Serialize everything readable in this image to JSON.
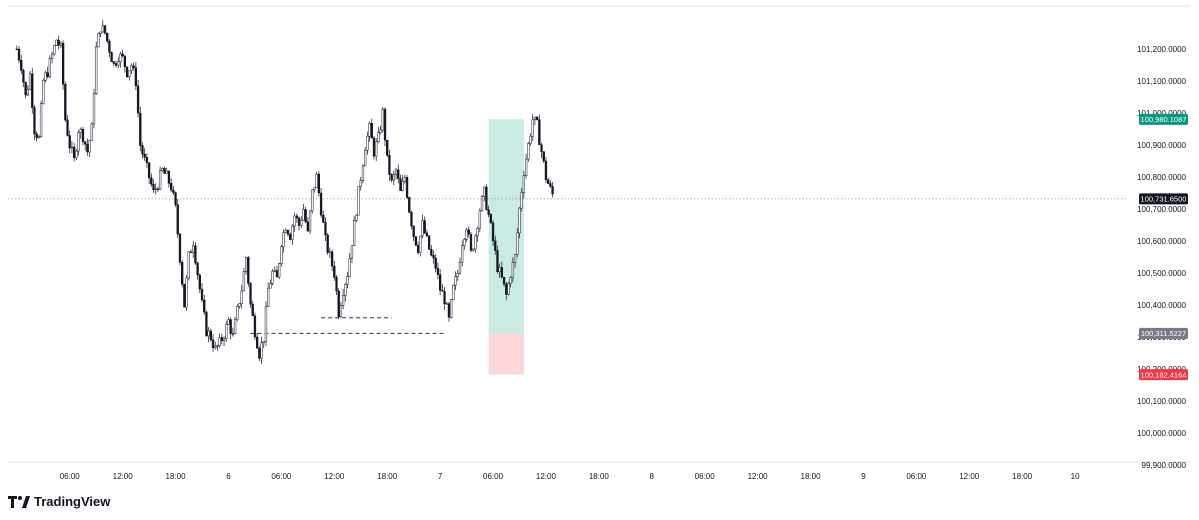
{
  "brand": {
    "name": "TradingView",
    "icon": "tradingview-logo-icon"
  },
  "colors": {
    "up": "#131722",
    "down": "#131722",
    "target_zone": "#bfe8df",
    "stop_zone": "#fbd3d6",
    "target_tag": "#089981",
    "stop_tag": "#f23645",
    "current_tag": "#131722",
    "level_tag": "#787b86"
  },
  "chart_data": {
    "type": "candlestick",
    "title": "",
    "ylim": [
      99900,
      101250
    ],
    "grid": false,
    "y_ticks": [
      {
        "value": 101200,
        "label": "101,200.0000"
      },
      {
        "value": 101100,
        "label": "101,100.0000"
      },
      {
        "value": 101000,
        "label": "101,000.0000"
      },
      {
        "value": 100900,
        "label": "100,900.0000"
      },
      {
        "value": 100800,
        "label": "100,800.0000"
      },
      {
        "value": 100700,
        "label": "100,700.0000"
      },
      {
        "value": 100600,
        "label": "100,600.0000"
      },
      {
        "value": 100500,
        "label": "100,500.0000"
      },
      {
        "value": 100400,
        "label": "100,400.0000"
      },
      {
        "value": 100300,
        "label": "100,300.0000"
      },
      {
        "value": 100200,
        "label": "100,200.0000"
      },
      {
        "value": 100100,
        "label": "100,100.0000"
      },
      {
        "value": 100000,
        "label": "100,000.0000"
      },
      {
        "value": 99900,
        "label": "99,900.0000"
      }
    ],
    "x_ticks": [
      {
        "hour": 6,
        "label": "06:00"
      },
      {
        "hour": 12,
        "label": "12:00"
      },
      {
        "hour": 18,
        "label": "18:00"
      },
      {
        "hour": 24,
        "label": "6"
      },
      {
        "hour": 30,
        "label": "06:00"
      },
      {
        "hour": 36,
        "label": "12:00"
      },
      {
        "hour": 42,
        "label": "18:00"
      },
      {
        "hour": 48,
        "label": "7"
      },
      {
        "hour": 54,
        "label": "06:00"
      },
      {
        "hour": 60,
        "label": "12:00"
      },
      {
        "hour": 66,
        "label": "18:00"
      },
      {
        "hour": 72,
        "label": "8"
      },
      {
        "hour": 78,
        "label": "06:00"
      },
      {
        "hour": 84,
        "label": "12:00"
      },
      {
        "hour": 90,
        "label": "18:00"
      },
      {
        "hour": 96,
        "label": "9"
      },
      {
        "hour": 102,
        "label": "06:00"
      },
      {
        "hour": 108,
        "label": "12:00"
      },
      {
        "hour": 114,
        "label": "18:00"
      },
      {
        "hour": 120,
        "label": "10"
      }
    ],
    "price_path": [
      [
        0.0,
        101200
      ],
      [
        0.5,
        101150
      ],
      [
        1.0,
        101050
      ],
      [
        1.5,
        101120
      ],
      [
        2.0,
        100950
      ],
      [
        2.5,
        100920
      ],
      [
        3.0,
        101100
      ],
      [
        3.5,
        101130
      ],
      [
        4.0,
        101180
      ],
      [
        4.5,
        101230
      ],
      [
        5.0,
        101200
      ],
      [
        5.5,
        100980
      ],
      [
        6.0,
        100900
      ],
      [
        6.5,
        100850
      ],
      [
        7.0,
        100950
      ],
      [
        7.5,
        100930
      ],
      [
        8.0,
        100880
      ],
      [
        8.5,
        100950
      ],
      [
        9.0,
        101200
      ],
      [
        9.5,
        101270
      ],
      [
        10.0,
        101250
      ],
      [
        10.5,
        101200
      ],
      [
        11.0,
        101150
      ],
      [
        11.5,
        101180
      ],
      [
        12.0,
        101170
      ],
      [
        12.5,
        101130
      ],
      [
        13.0,
        101150
      ],
      [
        13.5,
        101100
      ],
      [
        14.0,
        100900
      ],
      [
        14.5,
        100850
      ],
      [
        15.0,
        100800
      ],
      [
        15.5,
        100750
      ],
      [
        16.0,
        100780
      ],
      [
        16.5,
        100820
      ],
      [
        17.0,
        100800
      ],
      [
        17.5,
        100770
      ],
      [
        18.0,
        100700
      ],
      [
        18.5,
        100550
      ],
      [
        19.0,
        100400
      ],
      [
        19.5,
        100550
      ],
      [
        20.0,
        100600
      ],
      [
        20.5,
        100500
      ],
      [
        21.0,
        100400
      ],
      [
        21.5,
        100320
      ],
      [
        22.0,
        100300
      ],
      [
        22.5,
        100260
      ],
      [
        23.0,
        100280
      ],
      [
        23.5,
        100310
      ],
      [
        24.0,
        100350
      ],
      [
        24.5,
        100300
      ],
      [
        25.0,
        100380
      ],
      [
        25.5,
        100450
      ],
      [
        26.0,
        100550
      ],
      [
        26.5,
        100400
      ],
      [
        27.0,
        100320
      ],
      [
        27.5,
        100250
      ],
      [
        28.0,
        100300
      ],
      [
        28.5,
        100450
      ],
      [
        29.0,
        100500
      ],
      [
        29.5,
        100480
      ],
      [
        30.0,
        100600
      ],
      [
        30.5,
        100650
      ],
      [
        31.0,
        100620
      ],
      [
        31.5,
        100680
      ],
      [
        32.0,
        100650
      ],
      [
        32.5,
        100700
      ],
      [
        33.0,
        100620
      ],
      [
        33.5,
        100750
      ],
      [
        34.0,
        100800
      ],
      [
        34.5,
        100700
      ],
      [
        35.0,
        100600
      ],
      [
        35.5,
        100550
      ],
      [
        36.0,
        100500
      ],
      [
        36.5,
        100380
      ],
      [
        37.0,
        100450
      ],
      [
        37.5,
        100500
      ],
      [
        38.0,
        100600
      ],
      [
        38.5,
        100700
      ],
      [
        39.0,
        100800
      ],
      [
        39.5,
        100900
      ],
      [
        40.0,
        100950
      ],
      [
        40.5,
        100880
      ],
      [
        41.0,
        100920
      ],
      [
        41.5,
        101000
      ],
      [
        42.0,
        100850
      ],
      [
        42.5,
        100780
      ],
      [
        43.0,
        100820
      ],
      [
        43.5,
        100750
      ],
      [
        44.0,
        100800
      ],
      [
        44.5,
        100700
      ],
      [
        45.0,
        100620
      ],
      [
        45.5,
        100580
      ],
      [
        46.0,
        100650
      ],
      [
        46.5,
        100600
      ],
      [
        47.0,
        100550
      ],
      [
        47.5,
        100520
      ],
      [
        48.0,
        100450
      ],
      [
        48.5,
        100420
      ],
      [
        49.0,
        100350
      ],
      [
        49.5,
        100450
      ],
      [
        50.0,
        100500
      ],
      [
        50.5,
        100600
      ],
      [
        51.0,
        100650
      ],
      [
        51.5,
        100560
      ],
      [
        52.0,
        100620
      ],
      [
        52.5,
        100700
      ],
      [
        53.0,
        100750
      ],
      [
        53.5,
        100680
      ],
      [
        54.0,
        100600
      ],
      [
        54.5,
        100520
      ],
      [
        55.0,
        100480
      ],
      [
        55.5,
        100430
      ],
      [
        56.0,
        100500
      ],
      [
        56.5,
        100550
      ],
      [
        57.0,
        100700
      ],
      [
        57.5,
        100820
      ],
      [
        58.0,
        100900
      ],
      [
        58.5,
        100980
      ],
      [
        59.0,
        100960
      ],
      [
        59.5,
        100880
      ],
      [
        60.0,
        100800
      ],
      [
        60.5,
        100760
      ],
      [
        61.0,
        100730
      ]
    ],
    "horizontal_levels": [
      {
        "name": "current-price",
        "value": 100731.65,
        "from_hour": -1,
        "to_hour": 126,
        "style": "dotted"
      },
      {
        "name": "swing-low-1",
        "value": 100360,
        "from_hour": 34.5,
        "to_hour": 42.5,
        "style": "dashed"
      },
      {
        "name": "swing-low-2",
        "value": 100311.5227,
        "from_hour": 26.5,
        "to_hour": 48.5,
        "style": "dashed"
      }
    ],
    "position": {
      "from_hour": 53.5,
      "to_hour": 57.5,
      "entry": 100311.5227,
      "target": 100980.1087,
      "stop": 100182.4164
    },
    "price_tags": [
      {
        "name": "target-price-tag",
        "value": 100980.1087,
        "label": "100,980.1087",
        "kind": "target"
      },
      {
        "name": "current-price-tag",
        "value": 100731.65,
        "label": "100,731.6500",
        "kind": "current"
      },
      {
        "name": "entry-price-tag",
        "value": 100311.5227,
        "label": "100,311.5227",
        "kind": "level"
      },
      {
        "name": "stop-price-tag",
        "value": 100182.4164,
        "label": "100,182.4164",
        "kind": "stop"
      }
    ]
  }
}
